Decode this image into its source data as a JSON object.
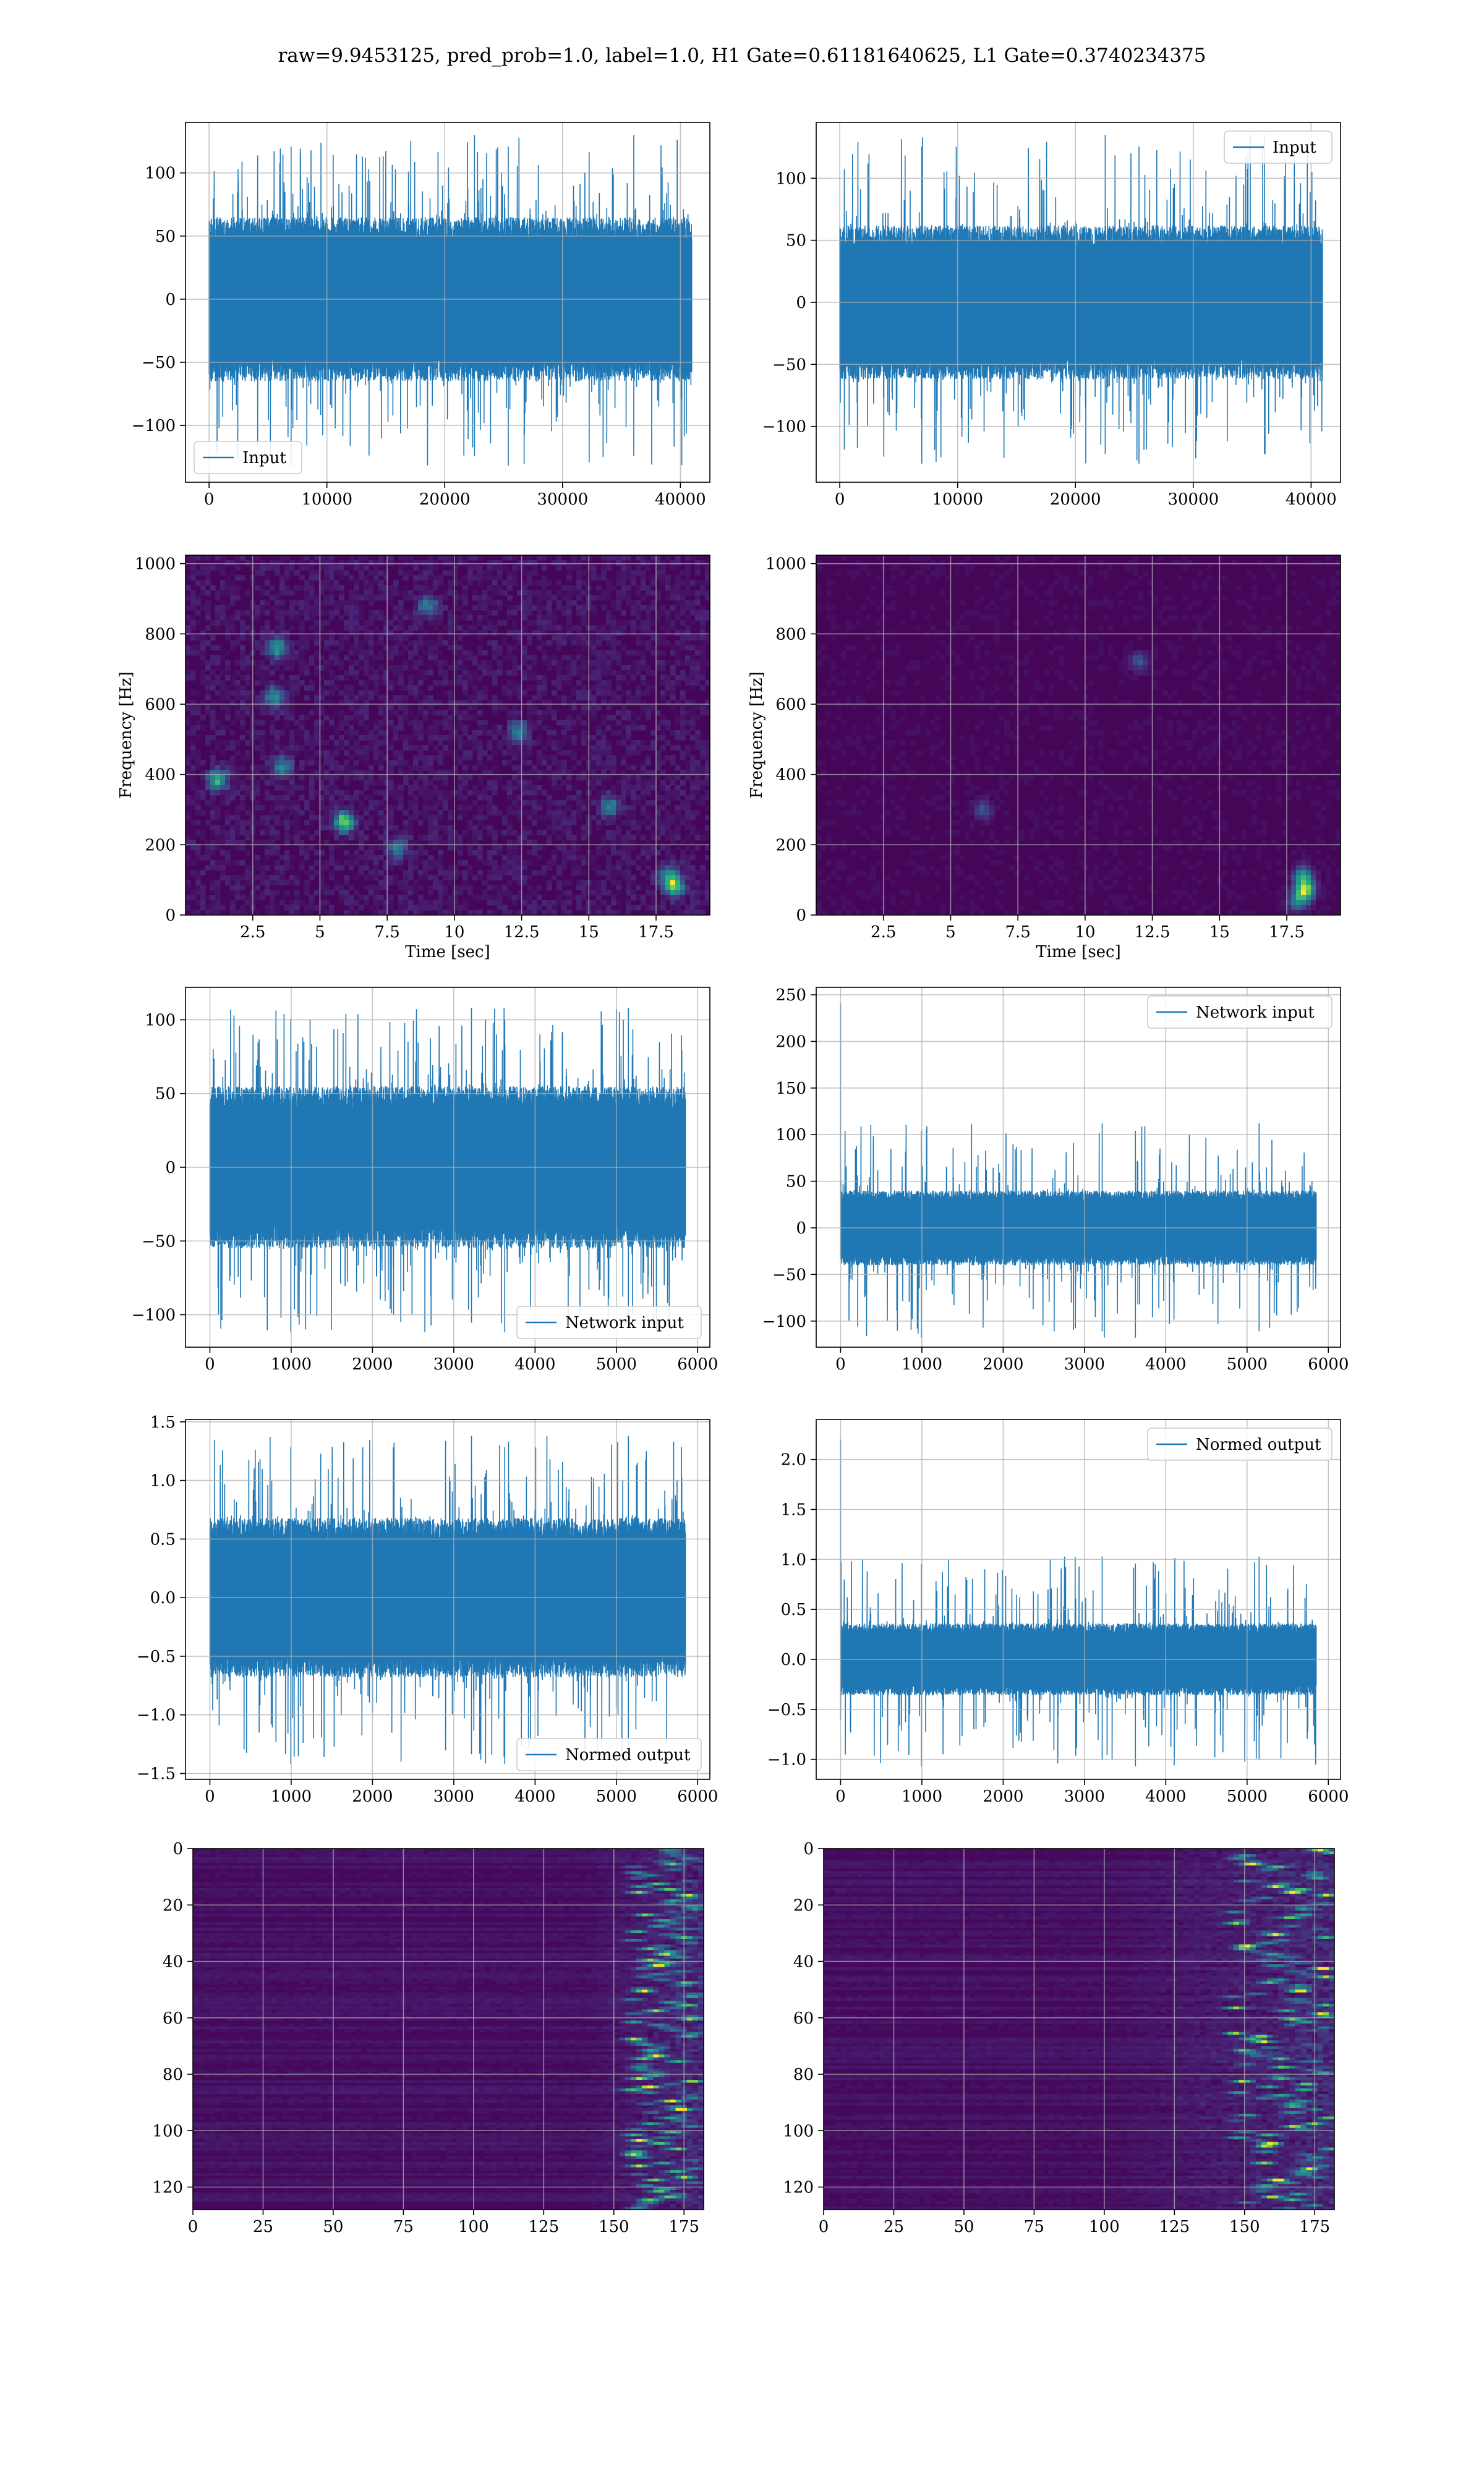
{
  "figure": {
    "title": "raw=9.9453125, pred_prob=1.0, label=1.0, H1 Gate=0.61181640625, L1 Gate=0.3740234375"
  },
  "colors": {
    "line": "#1f77b4",
    "grid": "#b0b0b0",
    "spine": "#000000",
    "viridis_dark": "#440154",
    "viridis_mid": "#21918c",
    "viridis_bright": "#fde725"
  },
  "chart_data": [
    {
      "id": "h1-input",
      "type": "line",
      "title": "",
      "xlabel": "",
      "ylabel": "",
      "xlim": [
        -2000,
        42500
      ],
      "ylim": [
        -145,
        140
      ],
      "xticks": [
        0,
        10000,
        20000,
        30000,
        40000
      ],
      "yticks": [
        -100,
        -50,
        0,
        50,
        100
      ],
      "grid": true,
      "legend": {
        "location": "lower-left",
        "entries": [
          "Input"
        ]
      },
      "series": [
        {
          "name": "Input",
          "x_range": [
            0,
            40960
          ],
          "samples": 40960,
          "band_abs": 65,
          "max": 130,
          "min": -132
        }
      ]
    },
    {
      "id": "l1-input",
      "type": "line",
      "title": "",
      "xlabel": "",
      "ylabel": "",
      "xlim": [
        -2000,
        42500
      ],
      "ylim": [
        -145,
        145
      ],
      "xticks": [
        0,
        10000,
        20000,
        30000,
        40000
      ],
      "yticks": [
        -100,
        -50,
        0,
        50,
        100
      ],
      "grid": true,
      "legend": {
        "location": "upper-right",
        "entries": [
          "Input"
        ]
      },
      "series": [
        {
          "name": "Input",
          "x_range": [
            0,
            40960
          ],
          "samples": 40960,
          "band_abs": 62,
          "max": 135,
          "min": -130
        }
      ]
    },
    {
      "id": "h1-spectrogram",
      "type": "heatmap",
      "title": "",
      "xlabel": "Time [sec]",
      "ylabel": "Frequency [Hz]",
      "xlim": [
        0,
        19.5
      ],
      "ylim": [
        0,
        1024
      ],
      "xticks": [
        2.5,
        5.0,
        7.5,
        10.0,
        12.5,
        15.0,
        17.5
      ],
      "yticks": [
        0,
        200,
        400,
        600,
        800,
        1000
      ],
      "grid": true,
      "colormap": "viridis",
      "hotspots": [
        {
          "t": 3.4,
          "f": 760,
          "level": 0.6
        },
        {
          "t": 3.3,
          "f": 620,
          "level": 0.55
        },
        {
          "t": 3.6,
          "f": 420,
          "level": 0.5
        },
        {
          "t": 5.9,
          "f": 265,
          "level": 0.9
        },
        {
          "t": 1.2,
          "f": 385,
          "level": 0.7
        },
        {
          "t": 18.2,
          "f": 80,
          "level": 0.7
        },
        {
          "t": 18.0,
          "f": 110,
          "level": 0.55
        },
        {
          "t": 15.8,
          "f": 310,
          "level": 0.45
        },
        {
          "t": 9.0,
          "f": 880,
          "level": 0.45
        },
        {
          "t": 12.4,
          "f": 520,
          "level": 0.45
        },
        {
          "t": 7.9,
          "f": 190,
          "level": 0.45
        }
      ]
    },
    {
      "id": "l1-spectrogram",
      "type": "heatmap",
      "title": "",
      "xlabel": "Time [sec]",
      "ylabel": "Frequency [Hz]",
      "xlim": [
        0,
        19.5
      ],
      "ylim": [
        0,
        1024
      ],
      "xticks": [
        2.5,
        5.0,
        7.5,
        10.0,
        12.5,
        15.0,
        17.5
      ],
      "yticks": [
        0,
        200,
        400,
        600,
        800,
        1000
      ],
      "grid": true,
      "colormap": "viridis",
      "hotspots": [
        {
          "t": 18.2,
          "f": 70,
          "level": 0.85
        },
        {
          "t": 18.1,
          "f": 110,
          "level": 0.6
        },
        {
          "t": 17.9,
          "f": 40,
          "level": 0.5
        },
        {
          "t": 6.2,
          "f": 300,
          "level": 0.3
        },
        {
          "t": 12.0,
          "f": 720,
          "level": 0.28
        }
      ]
    },
    {
      "id": "h1-network-input",
      "type": "line",
      "title": "",
      "xlabel": "",
      "ylabel": "",
      "xlim": [
        -300,
        6150
      ],
      "ylim": [
        -122,
        122
      ],
      "xticks": [
        0,
        1000,
        2000,
        3000,
        4000,
        5000,
        6000
      ],
      "yticks": [
        -100,
        -50,
        0,
        50,
        100
      ],
      "grid": true,
      "legend": {
        "location": "lower-right",
        "entries": [
          "Network input"
        ]
      },
      "series": [
        {
          "name": "Network input",
          "x_range": [
            0,
            5850
          ],
          "samples": 5850,
          "band_abs": 55,
          "max": 108,
          "min": -112
        }
      ]
    },
    {
      "id": "l1-network-input",
      "type": "line",
      "title": "",
      "xlabel": "",
      "ylabel": "",
      "xlim": [
        -300,
        6150
      ],
      "ylim": [
        -128,
        258
      ],
      "xticks": [
        0,
        1000,
        2000,
        3000,
        4000,
        5000,
        6000
      ],
      "yticks": [
        -100,
        -50,
        0,
        50,
        100,
        150,
        200,
        250
      ],
      "grid": true,
      "legend": {
        "location": "upper-right",
        "entries": [
          "Network input"
        ]
      },
      "series": [
        {
          "name": "Network input",
          "x_range": [
            0,
            5850
          ],
          "samples": 5850,
          "band_abs": 40,
          "max": 112,
          "min": -118,
          "spike": {
            "x": 0,
            "y": 241
          }
        }
      ]
    },
    {
      "id": "h1-normed-output",
      "type": "line",
      "title": "",
      "xlabel": "",
      "ylabel": "",
      "xlim": [
        -300,
        6150
      ],
      "ylim": [
        -1.55,
        1.52
      ],
      "xticks": [
        0,
        1000,
        2000,
        3000,
        4000,
        5000,
        6000
      ],
      "yticks": [
        -1.5,
        -1.0,
        -0.5,
        0.0,
        0.5,
        1.0,
        1.5
      ],
      "grid": true,
      "legend": {
        "location": "lower-right",
        "entries": [
          "Normed output"
        ]
      },
      "series": [
        {
          "name": "Normed output",
          "x_range": [
            0,
            5850
          ],
          "samples": 5850,
          "band_abs": 0.68,
          "max": 1.38,
          "min": -1.42
        }
      ]
    },
    {
      "id": "l1-normed-output",
      "type": "line",
      "title": "",
      "xlabel": "",
      "ylabel": "",
      "xlim": [
        -300,
        6150
      ],
      "ylim": [
        -1.2,
        2.4
      ],
      "xticks": [
        0,
        1000,
        2000,
        3000,
        4000,
        5000,
        6000
      ],
      "yticks": [
        -1.0,
        -0.5,
        0.0,
        0.5,
        1.0,
        1.5,
        2.0
      ],
      "grid": true,
      "legend": {
        "location": "upper-right",
        "entries": [
          "Normed output"
        ]
      },
      "series": [
        {
          "name": "Normed output",
          "x_range": [
            0,
            5850
          ],
          "samples": 5850,
          "band_abs": 0.36,
          "max": 1.03,
          "min": -1.07,
          "spike": {
            "x": 0,
            "y": 2.2
          }
        }
      ]
    },
    {
      "id": "h1-feature-map",
      "type": "heatmap",
      "title": "",
      "xlabel": "",
      "ylabel": "",
      "xlim": [
        0,
        182
      ],
      "ylim": [
        128,
        0
      ],
      "xticks": [
        0,
        25,
        50,
        75,
        100,
        125,
        150,
        175
      ],
      "yticks": [
        0,
        20,
        40,
        60,
        80,
        100,
        120
      ],
      "grid": true,
      "colormap": "viridis",
      "active_columns": [
        138,
        182
      ],
      "peak_columns": [
        155,
        178
      ]
    },
    {
      "id": "l1-feature-map",
      "type": "heatmap",
      "title": "",
      "xlabel": "",
      "ylabel": "",
      "xlim": [
        0,
        182
      ],
      "ylim": [
        128,
        0
      ],
      "xticks": [
        0,
        25,
        50,
        75,
        100,
        125,
        150,
        175
      ],
      "yticks": [
        0,
        20,
        40,
        60,
        80,
        100,
        120
      ],
      "grid": true,
      "colormap": "viridis",
      "active_columns": [
        100,
        182
      ],
      "peak_columns": [
        145,
        180
      ]
    }
  ]
}
